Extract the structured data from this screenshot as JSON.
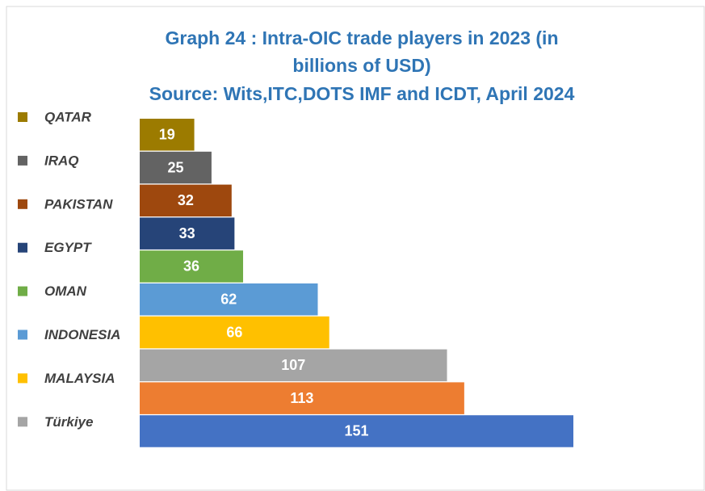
{
  "chart_data": {
    "type": "hbar",
    "title": "Graph 24 : Intra-OIC trade players in 2023 (in billions of USD)",
    "subtitle": "Source: Wits,ITC,DOTS IMF and ICDT, April 2024",
    "categories": [
      "QATAR",
      "IRAQ",
      "PAKISTAN",
      "EGYPT",
      "OMAN",
      "INDONESIA",
      "MALAYSIA",
      "Türkiye",
      null,
      null
    ],
    "values": [
      19,
      25,
      32,
      33,
      36,
      62,
      66,
      107,
      113,
      151
    ],
    "colors": [
      "#9c7b00",
      "#636363",
      "#9e480e",
      "#264478",
      "#70ad47",
      "#5b9bd5",
      "#ffc000",
      "#a5a5a5",
      "#ed7d31",
      "#4472c4"
    ],
    "legend": "left"
  }
}
